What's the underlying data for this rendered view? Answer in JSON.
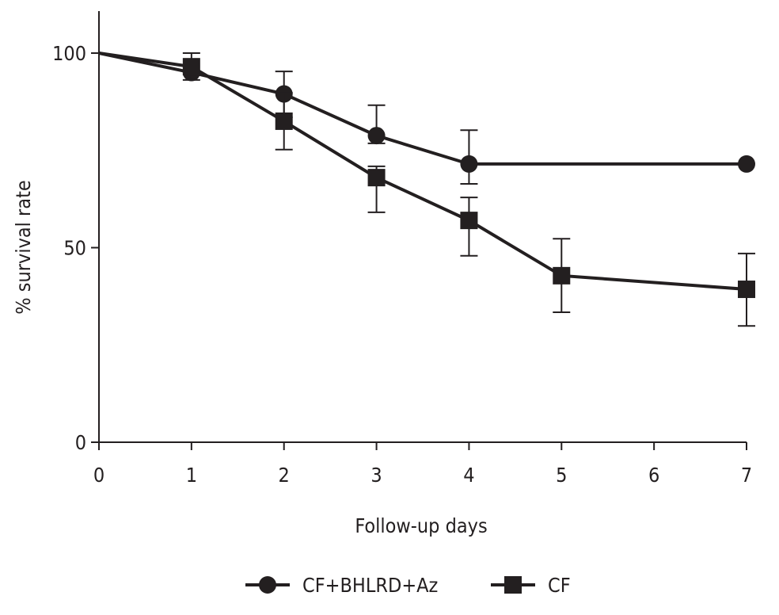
{
  "chart_data": {
    "type": "line",
    "title": "",
    "xlabel": "Follow-up days",
    "ylabel": "% survival rate",
    "xlim": [
      0,
      7
    ],
    "ylim": [
      0,
      100
    ],
    "xticks": [
      0,
      1,
      2,
      3,
      4,
      5,
      6,
      7
    ],
    "xtick_labels": [
      "0",
      "1",
      "2",
      "3",
      "4",
      "5",
      "6",
      "7"
    ],
    "yticks": [
      0,
      50,
      100
    ],
    "ytick_labels": [
      "0",
      "50",
      "100"
    ],
    "grid": false,
    "legend_position": "bottom-center",
    "color": "#231f20",
    "series": [
      {
        "name": "CF+BHLRD+Az",
        "marker": "circle",
        "x": [
          0,
          1,
          2,
          3,
          4,
          7
        ],
        "y": [
          100,
          95,
          89.5,
          78.8,
          71.5,
          71.5
        ],
        "err_low": [
          null,
          null,
          83.5,
          76.8,
          66.4,
          null
        ],
        "err_high": [
          null,
          null,
          95.3,
          86.6,
          80.2,
          null
        ]
      },
      {
        "name": "CF",
        "marker": "square",
        "x": [
          0,
          1,
          2,
          3,
          4,
          5,
          7
        ],
        "y": [
          100,
          96.5,
          82.5,
          68,
          57,
          42.8,
          39.3
        ],
        "err_low": [
          null,
          93.1,
          75.2,
          59.1,
          47.9,
          33.4,
          29.9
        ],
        "err_high": [
          null,
          100,
          89.8,
          70.9,
          62.9,
          52.3,
          48.5
        ]
      }
    ]
  }
}
